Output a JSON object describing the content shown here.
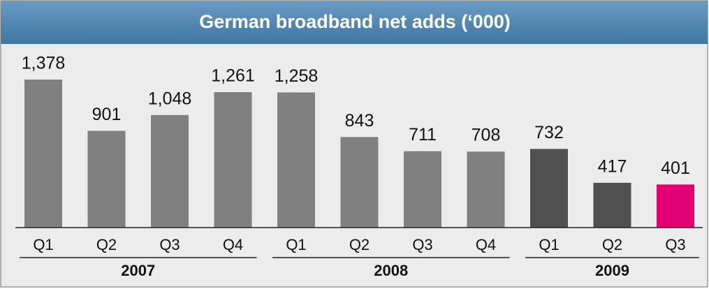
{
  "chart_data": {
    "type": "bar",
    "title": "German broadband net adds (‘000)",
    "groups": [
      {
        "name": "2007",
        "categories": [
          "Q1",
          "Q2",
          "Q3",
          "Q4"
        ],
        "values": [
          1378,
          901,
          1048,
          1261
        ],
        "value_labels": [
          "1,378",
          "901",
          "1,048",
          "1,261"
        ],
        "colors": [
          "#808080",
          "#808080",
          "#808080",
          "#808080"
        ]
      },
      {
        "name": "2008",
        "categories": [
          "Q1",
          "Q2",
          "Q3",
          "Q4"
        ],
        "values": [
          1258,
          843,
          711,
          708
        ],
        "value_labels": [
          "1,258",
          "843",
          "711",
          "708"
        ],
        "colors": [
          "#808080",
          "#808080",
          "#808080",
          "#808080"
        ]
      },
      {
        "name": "2009",
        "categories": [
          "Q1",
          "Q2",
          "Q3"
        ],
        "values": [
          732,
          417,
          401
        ],
        "value_labels": [
          "732",
          "417",
          "401"
        ],
        "colors": [
          "#505050",
          "#505050",
          "#e20074"
        ]
      }
    ]
  }
}
